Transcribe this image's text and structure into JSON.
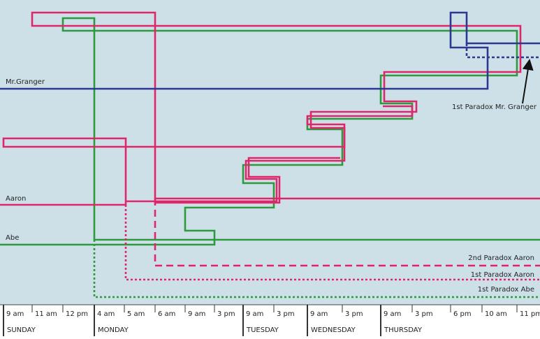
{
  "line_labels": [
    "Mr.Granger",
    "Aaron",
    "Abe"
  ],
  "annotations": [
    "1st Paradox Mr. Granger",
    "2nd Paradox Aaron",
    "1st Paradox Aaron",
    "1st Paradox Abe"
  ],
  "time_ticks": [
    "9 am",
    "11 am",
    "12 pm",
    "4 am",
    "5 am",
    "6 am",
    "9 am",
    "3 pm",
    "9 am",
    "3 pm",
    "9 am",
    "3 pm",
    "9 am",
    "3 pm",
    "6 pm",
    "10 am",
    "11 pm"
  ],
  "days": [
    "SUNDAY",
    "MONDAY",
    "TUESDAY",
    "WEDNESDAY",
    "THURSDAY"
  ]
}
